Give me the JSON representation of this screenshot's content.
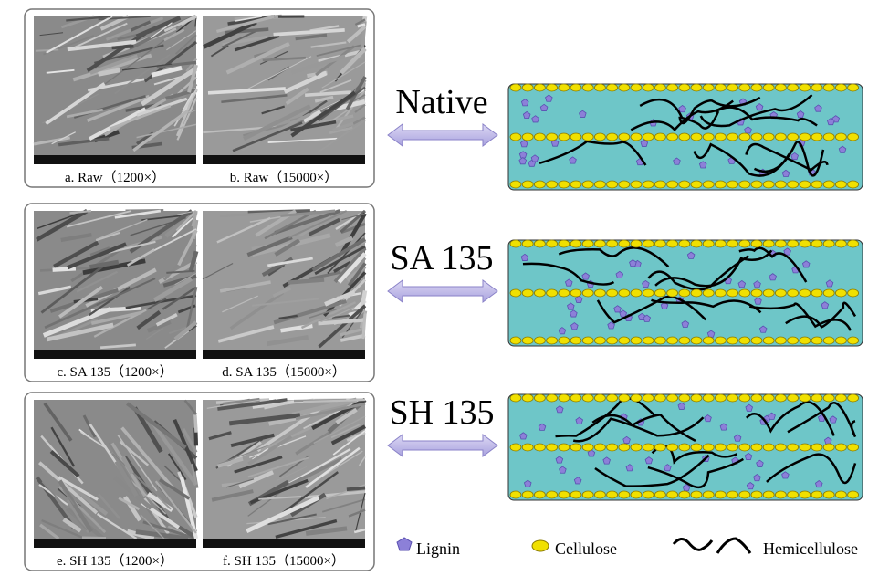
{
  "rows": [
    {
      "label": "Native",
      "captions": [
        "a. Raw（1200×）",
        "b. Raw（15000×）"
      ]
    },
    {
      "label": "SA 135",
      "captions": [
        "c. SA 135（1200×）",
        "d. SA 135（15000×）"
      ]
    },
    {
      "label": "SH 135",
      "captions": [
        "e. SH 135（1200×）",
        "f. SH 135（15000×）"
      ]
    }
  ],
  "legend": [
    "Lignin",
    "Cellulose",
    "Hemicellulose"
  ]
}
